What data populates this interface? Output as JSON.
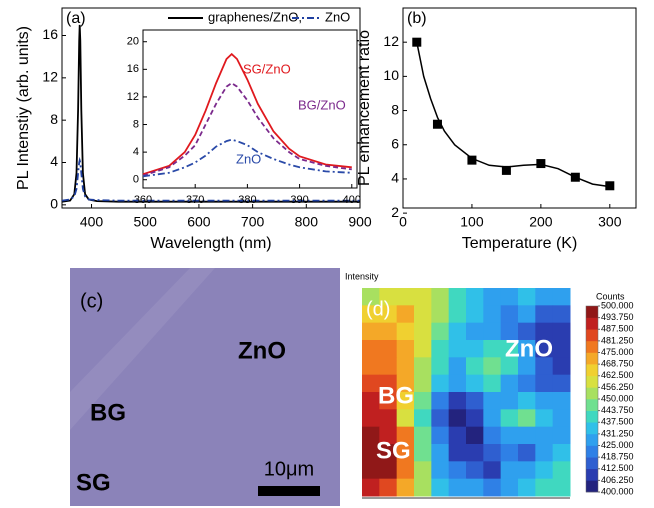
{
  "chart_data": [
    {
      "type": "line",
      "panel_label": "(a)",
      "ylabel": "PL Intenstiy (arb. units)",
      "xlabel": "Wavelength (nm)",
      "xlim": [
        345,
        900
      ],
      "ylim": [
        -0.3,
        18.6
      ],
      "xticks": [
        400,
        500,
        600,
        700,
        800,
        900
      ],
      "yticks": [
        0,
        4,
        8,
        12,
        16
      ],
      "x": [
        345,
        360,
        368,
        372,
        375,
        377,
        378,
        379,
        381,
        384,
        388,
        395,
        410,
        450,
        500,
        550,
        600,
        650,
        700,
        750,
        800,
        850,
        880,
        890,
        895,
        900
      ],
      "series": [
        {
          "name": "graphenes/ZnO,",
          "color": "#000000",
          "dash": "solid",
          "values": [
            0.3,
            0.4,
            1,
            3,
            9,
            15.5,
            17,
            15.5,
            9,
            3,
            1,
            0.5,
            0.35,
            0.3,
            0.3,
            0.3,
            0.3,
            0.3,
            0.3,
            0.3,
            0.3,
            0.3,
            0.3,
            0.3,
            0.3,
            0.3
          ]
        },
        {
          "name": "ZnO",
          "color": "#1f3fa0",
          "dash": "dash-dot",
          "values": [
            0.4,
            0.5,
            0.8,
            1.5,
            3,
            4,
            4.2,
            4,
            3,
            1.5,
            0.8,
            0.5,
            0.45,
            0.4,
            0.4,
            0.4,
            0.4,
            0.4,
            0.4,
            0.4,
            0.4,
            0.4,
            0.4,
            0.4,
            0.4,
            0.4
          ]
        }
      ]
    },
    {
      "type": "line",
      "xlim": [
        360,
        401
      ],
      "ylim": [
        -1.2,
        21.7
      ],
      "xticks": [
        360,
        370,
        380,
        390,
        400
      ],
      "yticks": [
        0,
        4,
        8,
        12,
        16,
        20
      ],
      "x": [
        360,
        365,
        368,
        370,
        372,
        374,
        376,
        377,
        378,
        380,
        382,
        385,
        388,
        390,
        395,
        400
      ],
      "series": [
        {
          "name": "SG/ZnO",
          "color": "#e0191e",
          "dash": "solid",
          "values": [
            0.8,
            2,
            4,
            6.5,
            10,
            14,
            17.5,
            18.2,
            17.5,
            14.5,
            11,
            7,
            4.5,
            3.4,
            2.2,
            1.8
          ]
        },
        {
          "name": "BG/ZnO",
          "color": "#7b2a8c",
          "dash": "dash",
          "values": [
            0.6,
            1.8,
            3.5,
            5,
            8,
            11,
            13.5,
            14,
            13.5,
            11.5,
            9,
            6,
            4,
            3,
            2,
            1.5
          ]
        },
        {
          "name": "ZnO",
          "color": "#2a4aa8",
          "dash": "dash-dot",
          "values": [
            0.5,
            1,
            1.8,
            2.5,
            3.5,
            4.8,
            5.6,
            5.8,
            5.6,
            5,
            4,
            3,
            2.2,
            1.8,
            1.2,
            1
          ]
        }
      ]
    },
    {
      "type": "scatter",
      "panel_label": "(b)",
      "ylabel": "PL enhancement ratio",
      "xlabel": "Temperature (K)",
      "xlim": [
        0,
        338
      ],
      "ylim": [
        2.3,
        14
      ],
      "xticks": [
        0,
        100,
        200,
        300
      ],
      "yticks": [
        2,
        4,
        6,
        8,
        10,
        12
      ],
      "color": "#000000",
      "x": [
        20,
        50,
        100,
        150,
        200,
        250,
        300
      ],
      "values": [
        12,
        7.2,
        5.1,
        4.5,
        4.9,
        4.1,
        3.6
      ],
      "fit_x": [
        20,
        30,
        40,
        50,
        60,
        75,
        100,
        125,
        150,
        175,
        200,
        225,
        250,
        275,
        300
      ],
      "fit_values": [
        12,
        10,
        8.7,
        7.6,
        6.8,
        6,
        5.2,
        4.8,
        4.7,
        4.8,
        4.85,
        4.6,
        4.1,
        3.7,
        3.55
      ]
    },
    {
      "type": "image",
      "panel_label": "(c)",
      "color": "#8b83b9",
      "labels": [
        "ZnO",
        "BG",
        "SG"
      ],
      "scale_bar": "10μm"
    },
    {
      "type": "heatmap",
      "panel_label": "(d)",
      "title": "Intensity",
      "labels": [
        "ZnO",
        "BG",
        "SG"
      ],
      "colorbar_title": "Counts",
      "clim": [
        400,
        500
      ],
      "colors": [
        "#23237e",
        "#2a3db0",
        "#2f5fd0",
        "#2f80e6",
        "#2fa0ee",
        "#30c0e8",
        "#40d8c0",
        "#70e090",
        "#a8e060",
        "#d8e040",
        "#f0d030",
        "#f4a828",
        "#f07820",
        "#e04820",
        "#c02020",
        "#901818"
      ],
      "colorbar_ticks": [
        {
          "value": 500,
          "label": "500.000"
        },
        {
          "value": 493.75,
          "label": "493.750"
        },
        {
          "value": 487.5,
          "label": "487.500"
        },
        {
          "value": 481.25,
          "label": "481.250"
        },
        {
          "value": 475,
          "label": "475.000"
        },
        {
          "value": 468.75,
          "label": "468.750"
        },
        {
          "value": 462.5,
          "label": "462.500"
        },
        {
          "value": 456.25,
          "label": "456.250"
        },
        {
          "value": 450,
          "label": "450.000"
        },
        {
          "value": 443.75,
          "label": "443.750"
        },
        {
          "value": 437.5,
          "label": "437.500"
        },
        {
          "value": 431.25,
          "label": "431.250"
        },
        {
          "value": 425,
          "label": "425.000"
        },
        {
          "value": 418.75,
          "label": "418.750"
        },
        {
          "value": 412.5,
          "label": "412.500"
        },
        {
          "value": 406.25,
          "label": "406.250"
        },
        {
          "value": 400,
          "label": "400.000"
        }
      ],
      "values": [
        [
          455,
          460,
          462,
          458,
          450,
          440,
          435,
          430,
          428,
          432,
          430,
          425
        ],
        [
          465,
          468,
          470,
          462,
          452,
          438,
          432,
          428,
          420,
          425,
          418,
          415
        ],
        [
          470,
          472,
          468,
          460,
          445,
          435,
          430,
          425,
          420,
          415,
          410,
          412
        ],
        [
          475,
          478,
          470,
          458,
          440,
          432,
          435,
          440,
          438,
          430,
          412,
          408
        ],
        [
          478,
          480,
          472,
          455,
          438,
          430,
          440,
          445,
          442,
          425,
          415,
          410
        ],
        [
          485,
          482,
          470,
          450,
          432,
          425,
          435,
          440,
          430,
          420,
          418,
          415
        ],
        [
          488,
          485,
          465,
          445,
          420,
          410,
          415,
          430,
          425,
          432,
          430,
          425
        ],
        [
          492,
          488,
          462,
          440,
          415,
          405,
          408,
          425,
          440,
          445,
          435,
          430
        ],
        [
          497,
          493,
          475,
          445,
          420,
          408,
          405,
          420,
          430,
          428,
          425,
          430
        ],
        [
          500,
          497,
          480,
          448,
          425,
          410,
          408,
          415,
          420,
          418,
          428,
          432
        ],
        [
          498,
          495,
          478,
          450,
          430,
          420,
          415,
          412,
          425,
          430,
          435,
          440
        ],
        [
          490,
          485,
          470,
          452,
          435,
          428,
          425,
          420,
          428,
          432,
          438,
          442
        ]
      ]
    }
  ]
}
